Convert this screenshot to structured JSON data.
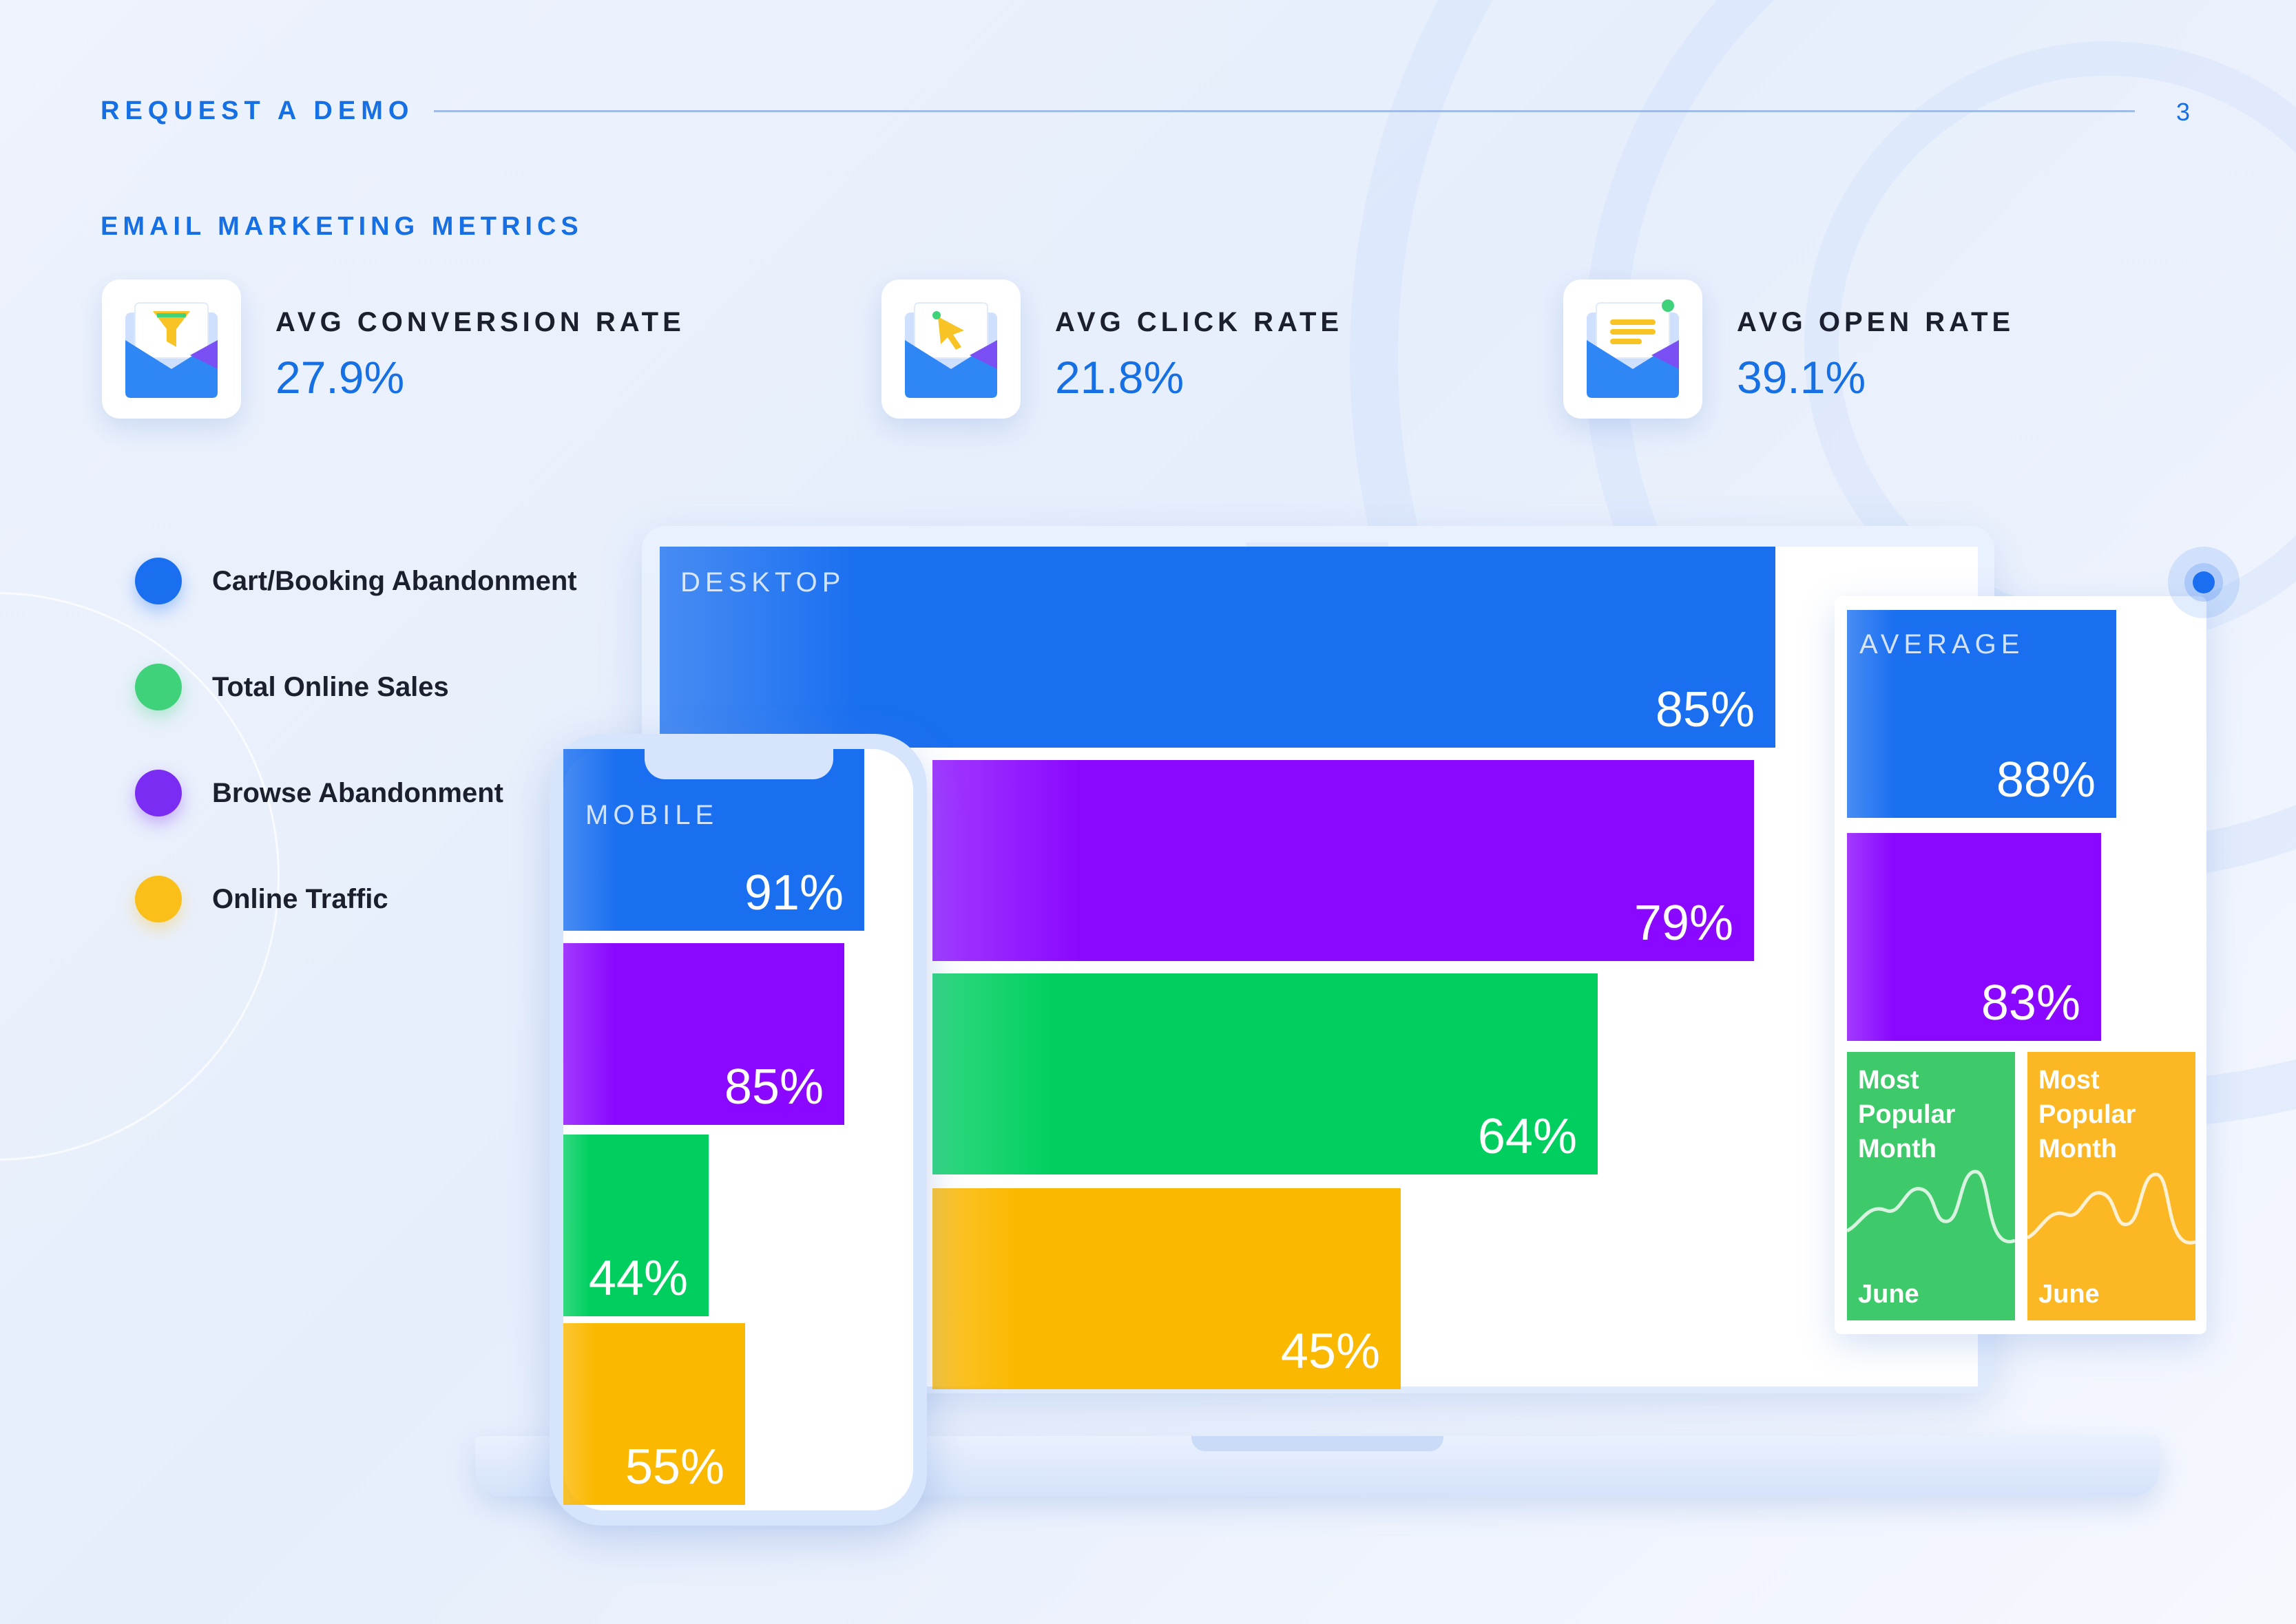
{
  "header": {
    "title": "REQUEST A DEMO",
    "page_number": "3"
  },
  "section": {
    "title": "EMAIL MARKETING METRICS"
  },
  "metrics": [
    {
      "label": "AVG CONVERSION RATE",
      "value": "27.9%",
      "icon": "envelope-funnel-icon"
    },
    {
      "label": "AVG CLICK RATE",
      "value": "21.8%",
      "icon": "envelope-cursor-icon"
    },
    {
      "label": "AVG OPEN RATE",
      "value": "39.1%",
      "icon": "envelope-letter-icon"
    }
  ],
  "legend": [
    {
      "label": "Cart/Booking Abandonment",
      "color": "#1a6ff0"
    },
    {
      "label": "Total Online Sales",
      "color": "#3fd27a"
    },
    {
      "label": "Browse Abandonment",
      "color": "#7a2cf3"
    },
    {
      "label": "Online Traffic",
      "color": "#fbbf1a"
    }
  ],
  "popular": {
    "title": "Most Popular Month",
    "cards": [
      {
        "month": "June",
        "color": "#3ec96a"
      },
      {
        "month": "June",
        "color": "#fbb824"
      }
    ]
  },
  "chart_data": {
    "type": "bar",
    "categories": [
      "Cart/Booking Abandonment",
      "Browse Abandonment",
      "Total Online Sales",
      "Online Traffic"
    ],
    "colors": [
      "#1a6ff0",
      "#8a08ff",
      "#00cf60",
      "#fbb800"
    ],
    "ylim": [
      0,
      100
    ],
    "unit": "%",
    "groups": [
      {
        "name": "DESKTOP",
        "orientation": "horizontal",
        "points": [
          {
            "category": "Cart/Booking Abandonment",
            "value": 85,
            "label": "85%"
          },
          {
            "category": "Browse Abandonment",
            "value": 79,
            "label": "79%"
          },
          {
            "category": "Total Online Sales",
            "value": 64,
            "label": "64%"
          },
          {
            "category": "Online Traffic",
            "value": 45,
            "label": "45%"
          }
        ]
      },
      {
        "name": "MOBILE",
        "orientation": "horizontal",
        "points": [
          {
            "category": "Cart/Booking Abandonment",
            "value": 91,
            "label": "91%"
          },
          {
            "category": "Browse Abandonment",
            "value": 85,
            "label": "85%"
          },
          {
            "category": "Total Online Sales",
            "value": 44,
            "label": "44%"
          },
          {
            "category": "Online Traffic",
            "value": 55,
            "label": "55%"
          }
        ]
      },
      {
        "name": "AVERAGE",
        "orientation": "horizontal",
        "points": [
          {
            "category": "Cart/Booking Abandonment",
            "value": 88,
            "label": "88%"
          },
          {
            "category": "Browse Abandonment",
            "value": 83,
            "label": "83%"
          }
        ]
      }
    ]
  }
}
